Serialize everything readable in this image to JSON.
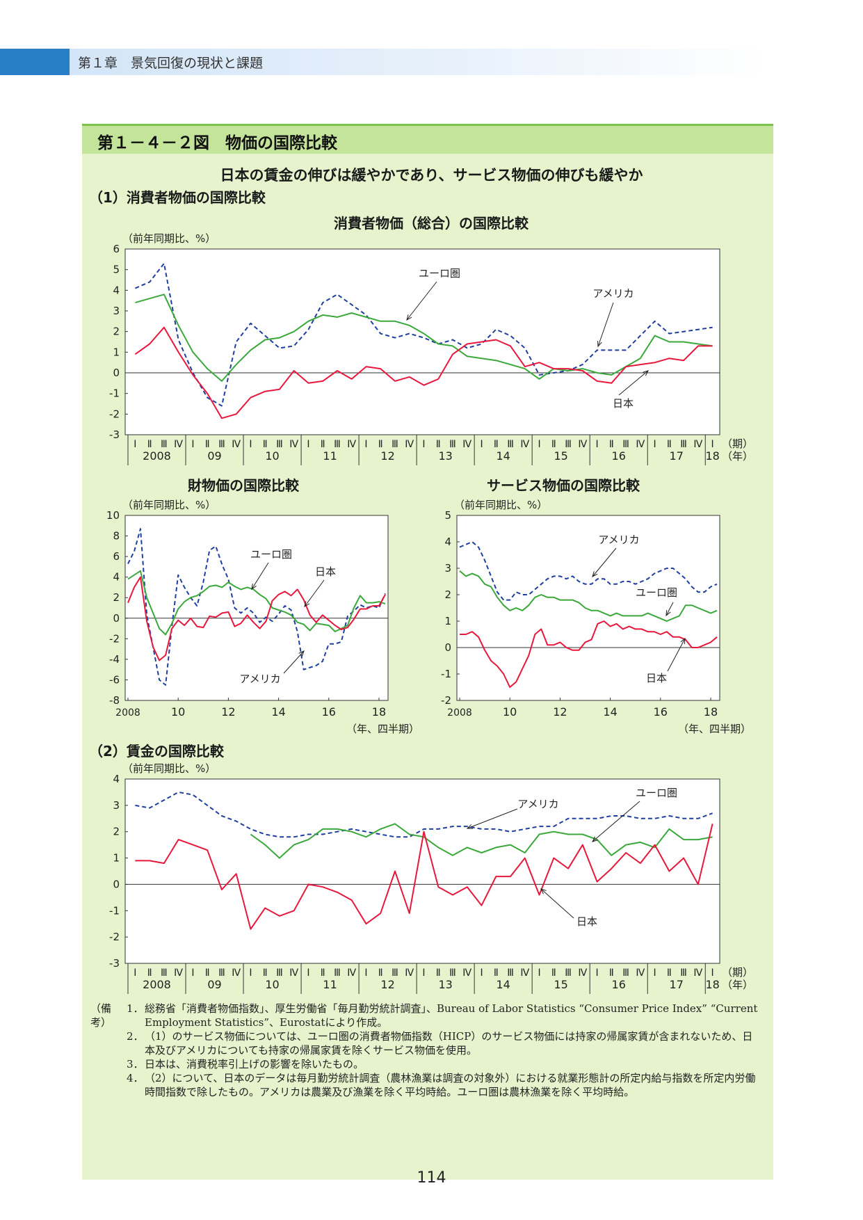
{
  "header": {
    "chapter": "第１章　景気回復の現状と課題"
  },
  "figure": {
    "title": "第１－４－２図　物価の国際比較",
    "subtitle": "日本の賃金の伸びは緩やかであり、サービス物価の伸びも緩やか",
    "section1": "（1）消費者物価の国際比較",
    "section2": "（2）賃金の国際比較"
  },
  "colors": {
    "japan": "#e8173c",
    "euro": "#3aa83a",
    "usa": "#1f3fa0",
    "frame": "#333333"
  },
  "chart_data": [
    {
      "id": "cpi_total",
      "type": "line",
      "title": "消費者物価（総合）の国際比較",
      "ylabel": "（前年同期比、%）",
      "ylim": [
        -3,
        6
      ],
      "yticks": [
        -3,
        -2,
        -1,
        0,
        1,
        2,
        3,
        4,
        5,
        6
      ],
      "quarters": [
        "Ⅰ",
        "Ⅱ",
        "Ⅲ",
        "Ⅳ",
        "Ⅰ",
        "Ⅱ",
        "Ⅲ",
        "Ⅳ",
        "Ⅰ",
        "Ⅱ",
        "Ⅲ",
        "Ⅳ",
        "Ⅰ",
        "Ⅱ",
        "Ⅲ",
        "Ⅳ",
        "Ⅰ",
        "Ⅱ",
        "Ⅲ",
        "Ⅳ",
        "Ⅰ",
        "Ⅱ",
        "Ⅲ",
        "Ⅳ",
        "Ⅰ",
        "Ⅱ",
        "Ⅲ",
        "Ⅳ",
        "Ⅰ",
        "Ⅱ",
        "Ⅲ",
        "Ⅳ",
        "Ⅰ",
        "Ⅱ",
        "Ⅲ",
        "Ⅳ",
        "Ⅰ",
        "Ⅱ",
        "Ⅲ",
        "Ⅳ",
        "Ⅰ"
      ],
      "years": [
        "2008",
        "09",
        "10",
        "11",
        "12",
        "13",
        "14",
        "15",
        "16",
        "17",
        "18"
      ],
      "period_label": "（期）",
      "year_label": "（年）",
      "series": [
        {
          "name": "日本",
          "key": "japan",
          "dash": false,
          "values": [
            0.9,
            1.4,
            2.2,
            1.0,
            -0.1,
            -1.0,
            -2.2,
            -2.0,
            -1.2,
            -0.9,
            -0.8,
            0.1,
            -0.5,
            -0.4,
            0.1,
            -0.3,
            0.3,
            0.2,
            -0.4,
            -0.2,
            -0.6,
            -0.3,
            0.9,
            1.4,
            1.5,
            1.6,
            1.3,
            0.3,
            0.5,
            0.2,
            0.2,
            0.1,
            -0.4,
            -0.5,
            0.3,
            0.4,
            0.5,
            0.7,
            0.6,
            1.3,
            1.3
          ]
        },
        {
          "name": "ユーロ圏",
          "key": "euro",
          "dash": false,
          "values": [
            3.4,
            3.6,
            3.8,
            2.3,
            1.0,
            0.2,
            -0.4,
            0.4,
            1.1,
            1.6,
            1.7,
            2.0,
            2.5,
            2.8,
            2.7,
            2.9,
            2.7,
            2.5,
            2.5,
            2.3,
            1.9,
            1.4,
            1.3,
            0.8,
            0.7,
            0.6,
            0.4,
            0.2,
            -0.3,
            0.2,
            0.1,
            0.2,
            0.0,
            -0.1,
            0.3,
            0.7,
            1.8,
            1.5,
            1.5,
            1.4,
            1.3
          ]
        },
        {
          "name": "アメリカ",
          "key": "usa",
          "dash": true,
          "values": [
            4.1,
            4.4,
            5.3,
            1.6,
            0.0,
            -1.2,
            -1.6,
            1.5,
            2.4,
            1.8,
            1.2,
            1.3,
            2.1,
            3.4,
            3.8,
            3.3,
            2.8,
            1.9,
            1.7,
            1.9,
            1.7,
            1.4,
            1.6,
            1.2,
            1.4,
            2.1,
            1.8,
            1.2,
            -0.1,
            0.0,
            0.1,
            0.4,
            1.1,
            1.1,
            1.1,
            1.8,
            2.5,
            1.9,
            2.0,
            2.1,
            2.2
          ]
        }
      ],
      "annotations": [
        "ユーロ圏",
        "アメリカ",
        "日本"
      ]
    },
    {
      "id": "cpi_goods",
      "type": "line",
      "title": "財物価の国際比較",
      "ylabel": "（前年同期比、%）",
      "ylim": [
        -8,
        10
      ],
      "yticks": [
        -8,
        -6,
        -4,
        -2,
        0,
        2,
        4,
        6,
        8,
        10
      ],
      "xticks": [
        "2008",
        "10",
        "12",
        "14",
        "16",
        "18"
      ],
      "xunit": "（年、四半期）",
      "series": [
        {
          "name": "日本",
          "key": "japan",
          "dash": false,
          "values": [
            1.5,
            3.0,
            4.0,
            -0.3,
            -2.8,
            -4.1,
            -3.6,
            -1.0,
            -0.2,
            -0.7,
            0.0,
            -0.8,
            -0.9,
            0.2,
            0.1,
            0.5,
            0.6,
            -0.8,
            -0.5,
            0.3,
            -0.4,
            -1.0,
            -0.3,
            1.7,
            2.3,
            2.6,
            2.2,
            2.8,
            1.8,
            0.3,
            -0.4,
            0.3,
            -0.2,
            -0.7,
            -1.1,
            -0.9,
            -0.1,
            0.9,
            0.9,
            1.2,
            1.2,
            2.3
          ]
        },
        {
          "name": "ユーロ圏",
          "key": "euro",
          "dash": false,
          "values": [
            3.8,
            4.2,
            4.6,
            2.0,
            0.5,
            -1.0,
            -1.6,
            -0.5,
            0.9,
            1.6,
            2.0,
            2.2,
            2.6,
            3.1,
            3.2,
            3.0,
            3.5,
            3.1,
            2.8,
            3.0,
            2.8,
            2.3,
            1.9,
            1.0,
            0.8,
            0.6,
            0.3,
            -0.4,
            -0.6,
            -1.2,
            -0.5,
            -0.6,
            -0.7,
            -1.3,
            -1.0,
            -0.7,
            1.0,
            2.2,
            1.5,
            1.5,
            1.6,
            1.4
          ]
        },
        {
          "name": "アメリカ",
          "key": "usa",
          "dash": true,
          "values": [
            5.3,
            6.5,
            8.7,
            0.3,
            -2.8,
            -6.0,
            -6.5,
            -0.8,
            4.2,
            3.0,
            2.0,
            1.2,
            3.5,
            6.6,
            7.0,
            5.2,
            3.8,
            1.0,
            0.5,
            1.0,
            0.5,
            -0.4,
            0.1,
            -0.3,
            0.4,
            1.2,
            0.8,
            -1.3,
            -5.0,
            -4.8,
            -4.6,
            -4.2,
            -2.5,
            -2.5,
            -2.3,
            0.2,
            0.7,
            1.3,
            1.0,
            1.2,
            1.0,
            2.4
          ]
        }
      ],
      "annotations": [
        "ユーロ圏",
        "日本",
        "アメリカ"
      ]
    },
    {
      "id": "cpi_services",
      "type": "line",
      "title": "サービス物価の国際比較",
      "ylabel": "（前年同期比、%）",
      "ylim": [
        -2,
        5
      ],
      "yticks": [
        -2,
        -1,
        0,
        1,
        2,
        3,
        4,
        5
      ],
      "xticks": [
        "2008",
        "10",
        "12",
        "14",
        "16",
        "18"
      ],
      "xunit": "（年、四半期）",
      "series": [
        {
          "name": "日本",
          "key": "japan",
          "dash": false,
          "values": [
            0.5,
            0.5,
            0.6,
            0.4,
            -0.1,
            -0.5,
            -0.7,
            -1.0,
            -1.5,
            -1.3,
            -0.8,
            -0.3,
            0.5,
            0.7,
            0.1,
            0.1,
            0.2,
            0.0,
            -0.1,
            -0.1,
            0.2,
            0.3,
            0.9,
            1.0,
            0.8,
            0.9,
            0.7,
            0.8,
            0.7,
            0.7,
            0.6,
            0.6,
            0.5,
            0.6,
            0.4,
            0.4,
            0.3,
            0.0,
            0.0,
            0.1,
            0.2,
            0.4
          ]
        },
        {
          "name": "ユーロ圏",
          "key": "euro",
          "dash": false,
          "values": [
            2.9,
            2.7,
            2.8,
            2.7,
            2.4,
            2.3,
            1.9,
            1.6,
            1.4,
            1.5,
            1.4,
            1.6,
            1.9,
            2.0,
            1.9,
            1.9,
            1.8,
            1.8,
            1.8,
            1.7,
            1.5,
            1.4,
            1.4,
            1.3,
            1.2,
            1.3,
            1.2,
            1.2,
            1.2,
            1.2,
            1.3,
            1.2,
            1.1,
            1.0,
            1.1,
            1.2,
            1.6,
            1.6,
            1.5,
            1.4,
            1.3,
            1.4
          ]
        },
        {
          "name": "アメリカ",
          "key": "usa",
          "dash": true,
          "values": [
            3.8,
            3.9,
            4.0,
            3.8,
            3.3,
            2.7,
            2.1,
            1.8,
            1.8,
            2.1,
            2.0,
            2.0,
            2.2,
            2.4,
            2.6,
            2.7,
            2.7,
            2.6,
            2.7,
            2.5,
            2.4,
            2.4,
            2.6,
            2.6,
            2.4,
            2.4,
            2.5,
            2.5,
            2.4,
            2.5,
            2.6,
            2.8,
            2.9,
            3.0,
            3.0,
            2.8,
            2.6,
            2.3,
            2.1,
            2.1,
            2.3,
            2.4
          ]
        }
      ],
      "annotations": [
        "アメリカ",
        "ユーロ圏",
        "日本"
      ]
    },
    {
      "id": "wages",
      "type": "line",
      "title": "",
      "ylabel": "（前年同期比、%）",
      "ylim": [
        -3,
        4
      ],
      "yticks": [
        -3,
        -2,
        -1,
        0,
        1,
        2,
        3,
        4
      ],
      "quarters": [
        "Ⅰ",
        "Ⅱ",
        "Ⅲ",
        "Ⅳ",
        "Ⅰ",
        "Ⅱ",
        "Ⅲ",
        "Ⅳ",
        "Ⅰ",
        "Ⅱ",
        "Ⅲ",
        "Ⅳ",
        "Ⅰ",
        "Ⅱ",
        "Ⅲ",
        "Ⅳ",
        "Ⅰ",
        "Ⅱ",
        "Ⅲ",
        "Ⅳ",
        "Ⅰ",
        "Ⅱ",
        "Ⅲ",
        "Ⅳ",
        "Ⅰ",
        "Ⅱ",
        "Ⅲ",
        "Ⅳ",
        "Ⅰ",
        "Ⅱ",
        "Ⅲ",
        "Ⅳ",
        "Ⅰ",
        "Ⅱ",
        "Ⅲ",
        "Ⅳ",
        "Ⅰ",
        "Ⅱ",
        "Ⅲ",
        "Ⅳ",
        "Ⅰ"
      ],
      "years": [
        "2008",
        "09",
        "10",
        "11",
        "12",
        "13",
        "14",
        "15",
        "16",
        "17",
        "18"
      ],
      "period_label": "（期）",
      "year_label": "（年）",
      "series": [
        {
          "name": "日本",
          "key": "japan",
          "dash": false,
          "values": [
            0.9,
            0.9,
            0.8,
            1.7,
            1.5,
            1.3,
            -0.2,
            0.4,
            -1.7,
            -0.9,
            -1.2,
            -1.0,
            0.0,
            -0.1,
            -0.3,
            -0.6,
            -1.5,
            -1.1,
            0.5,
            -1.1,
            2.0,
            -0.1,
            -0.4,
            -0.1,
            -0.8,
            0.3,
            0.3,
            1.0,
            -0.4,
            1.0,
            0.6,
            1.5,
            0.1,
            0.6,
            1.2,
            0.8,
            1.5,
            0.5,
            1.0,
            0.0,
            2.3
          ]
        },
        {
          "name": "ユーロ圏",
          "key": "euro",
          "dash": false,
          "values": [
            null,
            null,
            null,
            null,
            null,
            null,
            null,
            null,
            1.9,
            1.5,
            1.0,
            1.5,
            1.7,
            2.1,
            2.1,
            2.0,
            1.8,
            2.1,
            2.3,
            1.9,
            1.8,
            1.4,
            1.1,
            1.4,
            1.2,
            1.4,
            1.5,
            1.2,
            1.9,
            2.0,
            1.9,
            1.9,
            1.7,
            1.1,
            1.5,
            1.6,
            1.4,
            2.1,
            1.7,
            1.7,
            1.8
          ]
        },
        {
          "name": "アメリカ",
          "key": "usa",
          "dash": true,
          "values": [
            3.0,
            2.9,
            3.2,
            3.5,
            3.4,
            3.0,
            2.6,
            2.4,
            2.1,
            1.9,
            1.8,
            1.8,
            1.9,
            1.9,
            2.0,
            2.1,
            2.0,
            1.9,
            1.8,
            1.8,
            2.1,
            2.1,
            2.2,
            2.2,
            2.1,
            2.1,
            2.0,
            2.1,
            2.2,
            2.2,
            2.5,
            2.5,
            2.5,
            2.6,
            2.6,
            2.5,
            2.5,
            2.6,
            2.5,
            2.5,
            2.7
          ]
        }
      ],
      "annotations": [
        "アメリカ",
        "ユーロ圏",
        "日本"
      ]
    }
  ],
  "notes": {
    "head": "（備考）",
    "items": [
      {
        "num": "1．",
        "text": "総務省「消費者物価指数」、厚生労働省「毎月勤労統計調査」、Bureau of Labor Statistics “Consumer Price Index” “Current Employment Statistics”、Eurostatにより作成。"
      },
      {
        "num": "2．",
        "text": "（1）のサービス物価については、ユーロ圏の消費者物価指数（HICP）のサービス物価には持家の帰属家賃が含まれないため、日本及びアメリカについても持家の帰属家賃を除くサービス物価を使用。"
      },
      {
        "num": "3．",
        "text": "日本は、消費税率引上げの影響を除いたもの。"
      },
      {
        "num": "4．",
        "text": "（2）について、日本のデータは毎月勤労統計調査（農林漁業は調査の対象外）における就業形態計の所定内給与指数を所定内労働時間指数で除したもの。アメリカは農業及び漁業を除く平均時給。ユーロ圏は農林漁業を除く平均時給。"
      }
    ]
  },
  "page_number": "114"
}
